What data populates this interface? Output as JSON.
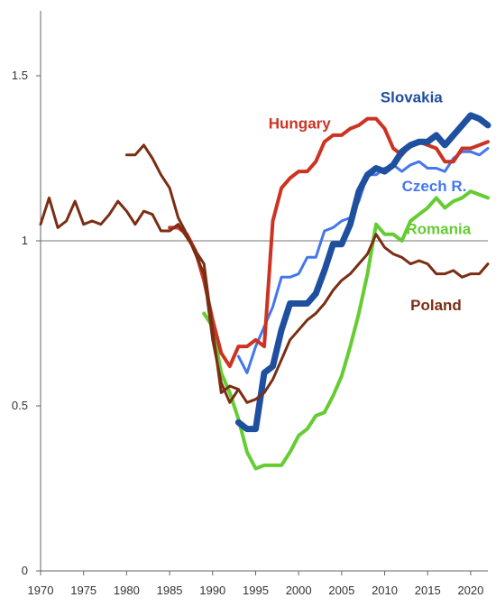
{
  "chart_data": {
    "type": "line",
    "title": "",
    "xlabel": "",
    "ylabel": "",
    "xlim": [
      1970,
      2022
    ],
    "ylim": [
      0,
      1.7
    ],
    "x_ticks": [
      {
        "value": 1970,
        "label": "1970"
      },
      {
        "value": 1975,
        "label": "1975"
      },
      {
        "value": 1980,
        "label": "1980"
      },
      {
        "value": 1985,
        "label": "1985"
      },
      {
        "value": 1990,
        "label": "1990"
      },
      {
        "value": 1995,
        "label": "1995"
      },
      {
        "value": 2000,
        "label": "2000"
      },
      {
        "value": 2005,
        "label": "2005"
      },
      {
        "value": 2010,
        "label": "2010"
      },
      {
        "value": 2015,
        "label": "2015"
      },
      {
        "value": 2020,
        "label": "2020"
      }
    ],
    "y_ticks": [
      {
        "value": 0,
        "label": "0"
      },
      {
        "value": 0.5,
        "label": "0.5"
      },
      {
        "value": 1,
        "label": "1"
      },
      {
        "value": 1.5,
        "label": "1.5"
      }
    ],
    "reference_line": 1,
    "grid": false,
    "legend": "none (series labelled directly on the plot)",
    "series": [
      {
        "name": "Romania",
        "color": "#66cc33",
        "x": [
          1989,
          1990,
          1991,
          1992,
          1993,
          1994,
          1995,
          1996,
          1997,
          1998,
          1999,
          2000,
          2001,
          2002,
          2003,
          2004,
          2005,
          2006,
          2007,
          2008,
          2009,
          2010,
          2011,
          2012,
          2013,
          2014,
          2015,
          2016,
          2017,
          2018,
          2019,
          2020,
          2021,
          2022
        ],
        "y": [
          0.78,
          0.74,
          0.6,
          0.54,
          0.46,
          0.36,
          0.31,
          0.32,
          0.32,
          0.32,
          0.36,
          0.41,
          0.43,
          0.47,
          0.48,
          0.53,
          0.59,
          0.68,
          0.78,
          0.9,
          1.05,
          1.02,
          1.02,
          1.0,
          1.06,
          1.08,
          1.1,
          1.13,
          1.1,
          1.12,
          1.13,
          1.15,
          1.14,
          1.13
        ]
      },
      {
        "name": "Czech R.",
        "color": "#4477ee",
        "x": [
          1993,
          1994,
          1995,
          1996,
          1997,
          1998,
          1999,
          2000,
          2001,
          2002,
          2003,
          2004,
          2005,
          2006,
          2007,
          2008,
          2009,
          2010,
          2011,
          2012,
          2013,
          2014,
          2015,
          2016,
          2017,
          2018,
          2019,
          2020,
          2021,
          2022
        ],
        "y": [
          0.65,
          0.6,
          0.68,
          0.74,
          0.8,
          0.89,
          0.89,
          0.9,
          0.95,
          0.95,
          1.03,
          1.04,
          1.06,
          1.07,
          1.12,
          1.2,
          1.2,
          1.22,
          1.23,
          1.21,
          1.23,
          1.24,
          1.22,
          1.22,
          1.21,
          1.25,
          1.27,
          1.27,
          1.26,
          1.28
        ]
      },
      {
        "name": "Hungary",
        "color": "#cc3322",
        "x": [
          1985,
          1986,
          1987,
          1988,
          1989,
          1990,
          1991,
          1992,
          1993,
          1994,
          1995,
          1996,
          1997,
          1998,
          1999,
          2000,
          2001,
          2002,
          2003,
          2004,
          2005,
          2006,
          2007,
          2008,
          2009,
          2010,
          2011,
          2012,
          2013,
          2014,
          2015,
          2016,
          2017,
          2018,
          2019,
          2020,
          2021,
          2022
        ],
        "y": [
          1.04,
          1.04,
          1.02,
          0.97,
          0.88,
          0.76,
          0.66,
          0.62,
          0.68,
          0.68,
          0.7,
          0.68,
          1.06,
          1.16,
          1.19,
          1.21,
          1.21,
          1.24,
          1.3,
          1.32,
          1.32,
          1.34,
          1.35,
          1.37,
          1.37,
          1.34,
          1.28,
          1.26,
          1.29,
          1.3,
          1.29,
          1.28,
          1.24,
          1.24,
          1.28,
          1.28,
          1.29,
          1.3
        ]
      },
      {
        "name": "Slovakia",
        "color": "#1f4f9f",
        "x": [
          1993,
          1994,
          1995,
          1996,
          1997,
          1998,
          1999,
          2000,
          2001,
          2002,
          2003,
          2004,
          2005,
          2006,
          2007,
          2008,
          2009,
          2010,
          2011,
          2012,
          2013,
          2014,
          2015,
          2016,
          2017,
          2018,
          2019,
          2020,
          2021,
          2022
        ],
        "y": [
          0.45,
          0.43,
          0.43,
          0.6,
          0.62,
          0.73,
          0.81,
          0.81,
          0.81,
          0.84,
          0.91,
          0.99,
          0.99,
          1.05,
          1.15,
          1.2,
          1.22,
          1.21,
          1.23,
          1.27,
          1.29,
          1.3,
          1.3,
          1.32,
          1.29,
          1.32,
          1.35,
          1.38,
          1.37,
          1.35
        ]
      },
      {
        "name": "Poland",
        "color": "#7a2e14",
        "x": [
          1970,
          1971,
          1972,
          1973,
          1974,
          1975,
          1976,
          1977,
          1978,
          1979,
          1980,
          1981,
          1982,
          1983,
          1984,
          1985,
          1986,
          1987,
          1988,
          1989,
          1990,
          1991,
          1992,
          1993,
          1994,
          1995,
          1996,
          1997,
          1998,
          1999,
          2000,
          2001,
          2002,
          2003,
          2004,
          2005,
          2006,
          2007,
          2008,
          2009,
          2010,
          2011,
          2012,
          2013,
          2014,
          2015,
          2016,
          2017,
          2018,
          2019,
          2020,
          2021,
          2022
        ],
        "y": [
          1.05,
          1.13,
          1.04,
          1.06,
          1.12,
          1.05,
          1.06,
          1.05,
          1.08,
          1.12,
          1.09,
          1.05,
          1.09,
          1.08,
          1.03,
          1.03,
          1.05,
          1.01,
          0.97,
          0.93,
          0.73,
          0.54,
          0.56,
          0.55,
          0.51,
          0.52,
          0.54,
          0.58,
          0.64,
          0.7,
          0.73,
          0.76,
          0.78,
          0.81,
          0.85,
          0.88,
          0.9,
          0.93,
          0.96,
          1.02,
          0.98,
          0.96,
          0.95,
          0.93,
          0.94,
          0.93,
          0.9,
          0.9,
          0.91,
          0.89,
          0.9,
          0.9,
          0.93
        ]
      },
      {
        "name": "",
        "color": "#7a2e14",
        "x": [
          1980,
          1981,
          1982,
          1983,
          1984,
          1985,
          1986,
          1987,
          1988,
          1989,
          1990,
          1991,
          1992,
          1993
        ],
        "y": [
          1.26,
          1.26,
          1.29,
          1.25,
          1.2,
          1.16,
          1.07,
          1.02,
          0.96,
          0.9,
          0.7,
          0.57,
          0.51,
          0.55
        ]
      }
    ],
    "labels": [
      {
        "text": "Slovakia",
        "color": "#1f4f9f",
        "x": 2009.5,
        "y": 1.42
      },
      {
        "text": "Hungary",
        "color": "#cc3322",
        "x": 1996.5,
        "y": 1.34
      },
      {
        "text": "Czech R.",
        "color": "#4477ee",
        "x": 2012,
        "y": 1.15
      },
      {
        "text": "Romania",
        "color": "#66cc33",
        "x": 2012.5,
        "y": 1.02
      },
      {
        "text": "Poland",
        "color": "#7a2e14",
        "x": 2013,
        "y": 0.79
      }
    ]
  }
}
